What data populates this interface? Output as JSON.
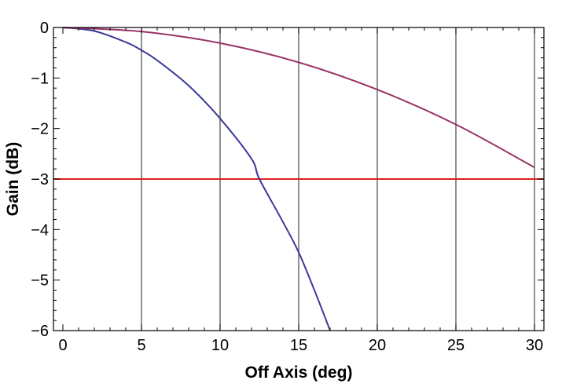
{
  "chart_data": {
    "type": "line",
    "xlabel": "Off Axis (deg)",
    "ylabel": "Gain (dB)",
    "xlim": [
      -0.6,
      30.6
    ],
    "ylim": [
      -6,
      0
    ],
    "x_ticks": [
      0,
      5,
      10,
      15,
      20,
      25,
      30
    ],
    "x_tick_labels": [
      "0",
      "5",
      "10",
      "15",
      "20",
      "25",
      "30"
    ],
    "y_ticks": [
      0,
      -1,
      -2,
      -3,
      -4,
      -5,
      -6
    ],
    "y_tick_labels": [
      "0",
      "−1",
      "−2",
      "−3",
      "−4",
      "−5",
      "−6"
    ],
    "grid": "vertical lines at x ticks 5-30",
    "series": [
      {
        "color": "#3a3a9a",
        "x": [
          0,
          2,
          4,
          5,
          6,
          8,
          10,
          12,
          12.5,
          14,
          15,
          16,
          17
        ],
        "y": [
          0,
          -0.07,
          -0.29,
          -0.45,
          -0.65,
          -1.15,
          -1.8,
          -2.6,
          -3.0,
          -3.85,
          -4.45,
          -5.2,
          -6.0
        ]
      },
      {
        "color": "#993366",
        "x": [
          0,
          5,
          10,
          15,
          20,
          25,
          30
        ],
        "y": [
          0,
          -0.08,
          -0.31,
          -0.69,
          -1.23,
          -1.92,
          -2.77
        ]
      }
    ],
    "reference_line": {
      "y": -3,
      "color": "#e02020"
    }
  }
}
